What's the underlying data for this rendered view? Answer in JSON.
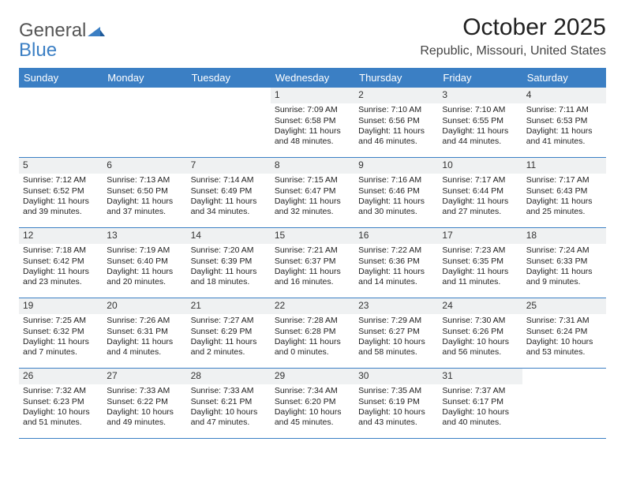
{
  "logo": {
    "line1": "General",
    "line2": "Blue",
    "color_general": "#555555",
    "color_blue": "#3b7fc4"
  },
  "header": {
    "title": "October 2025",
    "location": "Republic, Missouri, United States"
  },
  "accent_color": "#3b7fc4",
  "daynum_bg": "#eff1f2",
  "day_names": [
    "Sunday",
    "Monday",
    "Tuesday",
    "Wednesday",
    "Thursday",
    "Friday",
    "Saturday"
  ],
  "weeks": [
    [
      {
        "empty": true
      },
      {
        "empty": true
      },
      {
        "empty": true
      },
      {
        "day": "1",
        "sunrise": "Sunrise: 7:09 AM",
        "sunset": "Sunset: 6:58 PM",
        "daylight": "Daylight: 11 hours and 48 minutes."
      },
      {
        "day": "2",
        "sunrise": "Sunrise: 7:10 AM",
        "sunset": "Sunset: 6:56 PM",
        "daylight": "Daylight: 11 hours and 46 minutes."
      },
      {
        "day": "3",
        "sunrise": "Sunrise: 7:10 AM",
        "sunset": "Sunset: 6:55 PM",
        "daylight": "Daylight: 11 hours and 44 minutes."
      },
      {
        "day": "4",
        "sunrise": "Sunrise: 7:11 AM",
        "sunset": "Sunset: 6:53 PM",
        "daylight": "Daylight: 11 hours and 41 minutes."
      }
    ],
    [
      {
        "day": "5",
        "sunrise": "Sunrise: 7:12 AM",
        "sunset": "Sunset: 6:52 PM",
        "daylight": "Daylight: 11 hours and 39 minutes."
      },
      {
        "day": "6",
        "sunrise": "Sunrise: 7:13 AM",
        "sunset": "Sunset: 6:50 PM",
        "daylight": "Daylight: 11 hours and 37 minutes."
      },
      {
        "day": "7",
        "sunrise": "Sunrise: 7:14 AM",
        "sunset": "Sunset: 6:49 PM",
        "daylight": "Daylight: 11 hours and 34 minutes."
      },
      {
        "day": "8",
        "sunrise": "Sunrise: 7:15 AM",
        "sunset": "Sunset: 6:47 PM",
        "daylight": "Daylight: 11 hours and 32 minutes."
      },
      {
        "day": "9",
        "sunrise": "Sunrise: 7:16 AM",
        "sunset": "Sunset: 6:46 PM",
        "daylight": "Daylight: 11 hours and 30 minutes."
      },
      {
        "day": "10",
        "sunrise": "Sunrise: 7:17 AM",
        "sunset": "Sunset: 6:44 PM",
        "daylight": "Daylight: 11 hours and 27 minutes."
      },
      {
        "day": "11",
        "sunrise": "Sunrise: 7:17 AM",
        "sunset": "Sunset: 6:43 PM",
        "daylight": "Daylight: 11 hours and 25 minutes."
      }
    ],
    [
      {
        "day": "12",
        "sunrise": "Sunrise: 7:18 AM",
        "sunset": "Sunset: 6:42 PM",
        "daylight": "Daylight: 11 hours and 23 minutes."
      },
      {
        "day": "13",
        "sunrise": "Sunrise: 7:19 AM",
        "sunset": "Sunset: 6:40 PM",
        "daylight": "Daylight: 11 hours and 20 minutes."
      },
      {
        "day": "14",
        "sunrise": "Sunrise: 7:20 AM",
        "sunset": "Sunset: 6:39 PM",
        "daylight": "Daylight: 11 hours and 18 minutes."
      },
      {
        "day": "15",
        "sunrise": "Sunrise: 7:21 AM",
        "sunset": "Sunset: 6:37 PM",
        "daylight": "Daylight: 11 hours and 16 minutes."
      },
      {
        "day": "16",
        "sunrise": "Sunrise: 7:22 AM",
        "sunset": "Sunset: 6:36 PM",
        "daylight": "Daylight: 11 hours and 14 minutes."
      },
      {
        "day": "17",
        "sunrise": "Sunrise: 7:23 AM",
        "sunset": "Sunset: 6:35 PM",
        "daylight": "Daylight: 11 hours and 11 minutes."
      },
      {
        "day": "18",
        "sunrise": "Sunrise: 7:24 AM",
        "sunset": "Sunset: 6:33 PM",
        "daylight": "Daylight: 11 hours and 9 minutes."
      }
    ],
    [
      {
        "day": "19",
        "sunrise": "Sunrise: 7:25 AM",
        "sunset": "Sunset: 6:32 PM",
        "daylight": "Daylight: 11 hours and 7 minutes."
      },
      {
        "day": "20",
        "sunrise": "Sunrise: 7:26 AM",
        "sunset": "Sunset: 6:31 PM",
        "daylight": "Daylight: 11 hours and 4 minutes."
      },
      {
        "day": "21",
        "sunrise": "Sunrise: 7:27 AM",
        "sunset": "Sunset: 6:29 PM",
        "daylight": "Daylight: 11 hours and 2 minutes."
      },
      {
        "day": "22",
        "sunrise": "Sunrise: 7:28 AM",
        "sunset": "Sunset: 6:28 PM",
        "daylight": "Daylight: 11 hours and 0 minutes."
      },
      {
        "day": "23",
        "sunrise": "Sunrise: 7:29 AM",
        "sunset": "Sunset: 6:27 PM",
        "daylight": "Daylight: 10 hours and 58 minutes."
      },
      {
        "day": "24",
        "sunrise": "Sunrise: 7:30 AM",
        "sunset": "Sunset: 6:26 PM",
        "daylight": "Daylight: 10 hours and 56 minutes."
      },
      {
        "day": "25",
        "sunrise": "Sunrise: 7:31 AM",
        "sunset": "Sunset: 6:24 PM",
        "daylight": "Daylight: 10 hours and 53 minutes."
      }
    ],
    [
      {
        "day": "26",
        "sunrise": "Sunrise: 7:32 AM",
        "sunset": "Sunset: 6:23 PM",
        "daylight": "Daylight: 10 hours and 51 minutes."
      },
      {
        "day": "27",
        "sunrise": "Sunrise: 7:33 AM",
        "sunset": "Sunset: 6:22 PM",
        "daylight": "Daylight: 10 hours and 49 minutes."
      },
      {
        "day": "28",
        "sunrise": "Sunrise: 7:33 AM",
        "sunset": "Sunset: 6:21 PM",
        "daylight": "Daylight: 10 hours and 47 minutes."
      },
      {
        "day": "29",
        "sunrise": "Sunrise: 7:34 AM",
        "sunset": "Sunset: 6:20 PM",
        "daylight": "Daylight: 10 hours and 45 minutes."
      },
      {
        "day": "30",
        "sunrise": "Sunrise: 7:35 AM",
        "sunset": "Sunset: 6:19 PM",
        "daylight": "Daylight: 10 hours and 43 minutes."
      },
      {
        "day": "31",
        "sunrise": "Sunrise: 7:37 AM",
        "sunset": "Sunset: 6:17 PM",
        "daylight": "Daylight: 10 hours and 40 minutes."
      },
      {
        "empty": true
      }
    ]
  ]
}
